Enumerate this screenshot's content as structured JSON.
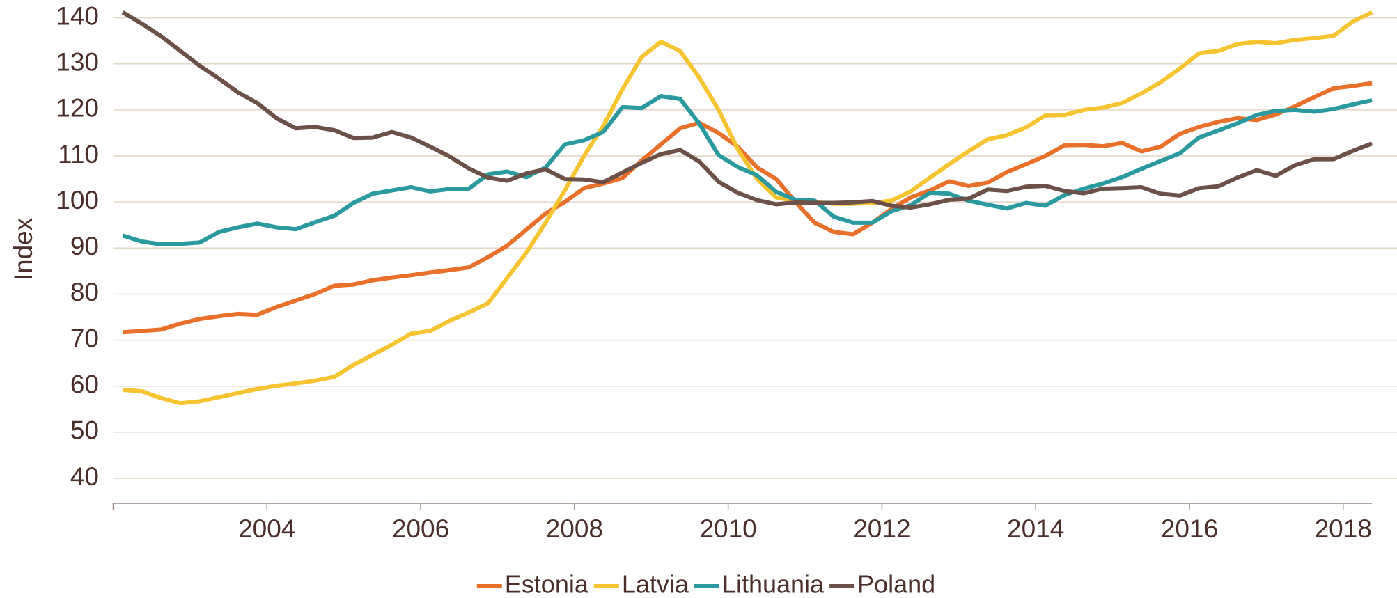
{
  "chart_data": {
    "type": "line",
    "ylabel": "Index",
    "xlim": [
      2002,
      2018.7
    ],
    "xticks": [
      2004,
      2006,
      2008,
      2010,
      2012,
      2014,
      2016,
      2018
    ],
    "ylim": [
      40,
      140
    ],
    "yticks": [
      40,
      50,
      60,
      70,
      80,
      90,
      100,
      110,
      120,
      130,
      140
    ],
    "grid": true,
    "legend": "bottom",
    "x": [
      2002.125,
      2002.375,
      2002.625,
      2002.875,
      2003.125,
      2003.375,
      2003.625,
      2003.875,
      2004.125,
      2004.375,
      2004.625,
      2004.875,
      2005.125,
      2005.375,
      2005.625,
      2005.875,
      2006.125,
      2006.375,
      2006.625,
      2006.875,
      2007.125,
      2007.375,
      2007.625,
      2007.875,
      2008.125,
      2008.375,
      2008.625,
      2008.875,
      2009.125,
      2009.375,
      2009.625,
      2009.875,
      2010.125,
      2010.375,
      2010.625,
      2010.875,
      2011.125,
      2011.375,
      2011.625,
      2011.875,
      2012.125,
      2012.375,
      2012.625,
      2012.875,
      2013.125,
      2013.375,
      2013.625,
      2013.875,
      2014.125,
      2014.375,
      2014.625,
      2014.875,
      2015.125,
      2015.375,
      2015.625,
      2015.875,
      2016.125,
      2016.375,
      2016.625,
      2016.875,
      2017.125,
      2017.375,
      2017.625,
      2017.875,
      2018.125,
      2018.375
    ],
    "series": [
      {
        "name": "Estonia",
        "color": "#e8702a",
        "values": [
          71.7,
          72,
          72.3,
          73.6,
          74.6,
          75.2,
          75.7,
          75.5,
          77.2,
          78.6,
          80,
          81.8,
          82.1,
          83,
          83.6,
          84.1,
          84.7,
          85.2,
          85.8,
          88,
          90.5,
          94,
          97.5,
          100,
          103,
          104,
          105.2,
          109,
          112.5,
          116,
          117.2,
          115,
          112,
          107.5,
          105,
          100,
          95.5,
          93.5,
          93,
          95.5,
          98.5,
          101,
          102.5,
          104.5,
          103.5,
          104.2,
          106.5,
          108.2,
          110,
          112.3,
          112.4,
          112.1,
          112.8,
          111,
          112,
          114.8,
          116.3,
          117.4,
          118.2,
          117.8,
          119,
          120.8,
          122.8,
          124.7,
          125.2,
          125.8
        ]
      },
      {
        "name": "Latvia",
        "color": "#f7c431",
        "values": [
          59.2,
          58.9,
          57.4,
          56.3,
          56.7,
          57.6,
          58.5,
          59.4,
          60.1,
          60.6,
          61.2,
          62,
          64.6,
          66.8,
          69,
          71.4,
          72,
          74.2,
          76,
          78,
          83.5,
          89,
          95.5,
          102.5,
          110,
          116.5,
          124.5,
          131.5,
          134.8,
          132.8,
          127,
          120,
          111.5,
          105,
          101,
          100.2,
          100,
          99.6,
          99.6,
          99.8,
          100.3,
          102.3,
          105.3,
          108.2,
          111,
          113.6,
          114.5,
          116.2,
          118.8,
          118.9,
          120,
          120.5,
          121.5,
          123.6,
          126,
          129,
          132.3,
          132.8,
          134.3,
          134.8,
          134.5,
          135.2,
          135.6,
          136.1,
          139.2,
          141.2
        ]
      },
      {
        "name": "Lithuania",
        "color": "#2a9a9e",
        "values": [
          92.7,
          91.4,
          90.8,
          90.9,
          91.2,
          93.5,
          94.5,
          95.3,
          94.5,
          94.1,
          95.6,
          97,
          99.8,
          101.8,
          102.5,
          103.2,
          102.3,
          102.8,
          102.9,
          106,
          106.6,
          105.4,
          107.5,
          112.5,
          113.4,
          115.2,
          120.6,
          120.4,
          123,
          122.4,
          117,
          110.2,
          107.6,
          105.8,
          102.2,
          100.5,
          100.3,
          96.8,
          95.5,
          95.5,
          98,
          99.3,
          102,
          101.8,
          100.3,
          99.4,
          98.6,
          99.8,
          99.2,
          101.5,
          102.9,
          104,
          105.4,
          107.2,
          108.9,
          110.6,
          114,
          115.5,
          117.1,
          118.9,
          119.8,
          120,
          119.6,
          120.2,
          121.2,
          122.1
        ]
      },
      {
        "name": "Poland",
        "color": "#6b5147",
        "values": [
          141.2,
          138.7,
          136,
          132.8,
          129.6,
          126.8,
          123.8,
          121.5,
          118.2,
          116,
          116.3,
          115.6,
          113.9,
          114,
          115.2,
          114,
          112,
          109.9,
          107.3,
          105.3,
          104.6,
          106.2,
          107.1,
          105,
          104.9,
          104.3,
          106.4,
          108.5,
          110.4,
          111.3,
          108.8,
          104.4,
          102,
          100.4,
          99.5,
          99.9,
          99.8,
          99.8,
          99.9,
          100.2,
          99.2,
          98.8,
          99.5,
          100.5,
          100.7,
          102.7,
          102.4,
          103.3,
          103.5,
          102.4,
          101.9,
          102.9,
          103,
          103.2,
          101.8,
          101.4,
          103,
          103.4,
          105.3,
          106.9,
          105.7,
          108,
          109.3,
          109.3,
          111.1,
          112.7
        ]
      }
    ]
  }
}
